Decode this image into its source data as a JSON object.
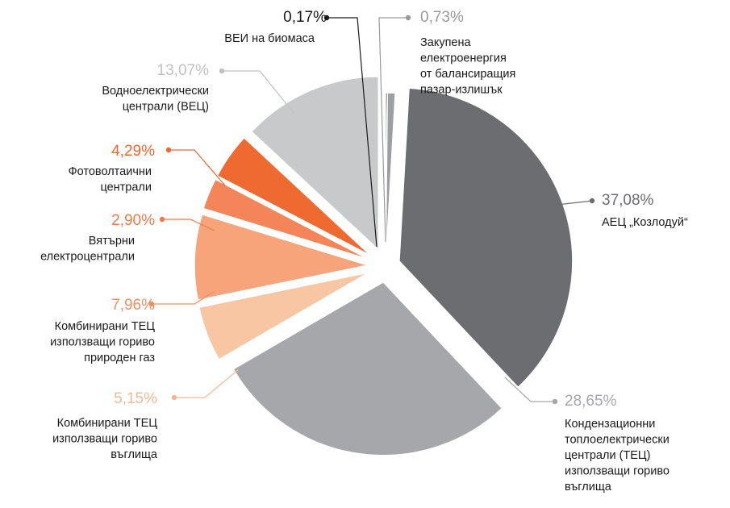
{
  "chart_data": {
    "type": "pie",
    "title": "",
    "start": "clockwise from top",
    "slices": [
      {
        "name": "ВЕИ на биомаса",
        "value": 0.17,
        "value_label": "0,17%",
        "label_lines": [
          "ВЕИ на биомаса"
        ],
        "color": "#3a3a3a",
        "text_color": "#1a1a1a"
      },
      {
        "name": "Закупена електроенергия от балансиращия пазар-излишък",
        "value": 0.73,
        "value_label": "0,73%",
        "label_lines": [
          "Закупена",
          "електроенергия",
          "от балансиращия",
          "пазар-излишък"
        ],
        "color": "#9d9ea1",
        "text_color": "#9a9a9c"
      },
      {
        "name": "АЕЦ „Козлодуй“",
        "value": 37.08,
        "value_label": "37,08%",
        "label_lines": [
          "АЕЦ „Козлодуй“"
        ],
        "color": "#6c6d70",
        "text_color": "#6c6d70"
      },
      {
        "name": "Кондензационни топлоелектрически централи (ТЕЦ) използващи гориво въглища",
        "value": 28.65,
        "value_label": "28,65%",
        "label_lines": [
          "Кондензационни",
          "топлоелектрически",
          "централи (ТЕЦ)",
          "използващи гориво",
          "въглища"
        ],
        "color": "#a6a7aa",
        "text_color": "#a6a7aa"
      },
      {
        "name": "Комбинирани ТЕЦ използващи гориво въглища",
        "value": 5.15,
        "value_label": "5,15%",
        "label_lines": [
          "Комбинирани ТЕЦ",
          "използващи гориво",
          "въглища"
        ],
        "color": "#f9c6a3",
        "text_color": "#f3b892"
      },
      {
        "name": "Комбинирани ТЕЦ използващи гориво природен газ",
        "value": 7.96,
        "value_label": "7,96%",
        "label_lines": [
          "Комбинирани ТЕЦ",
          "използващи гориво",
          "природен газ"
        ],
        "color": "#f7a47b",
        "text_color": "#f08f62"
      },
      {
        "name": "Вятърни електроцентрали",
        "value": 2.9,
        "value_label": "2,90%",
        "label_lines": [
          "Вятърни",
          "електроцентрали"
        ],
        "color": "#f38558",
        "text_color": "#ef7a4a"
      },
      {
        "name": "Фотоволтаични централи",
        "value": 4.29,
        "value_label": "4,29%",
        "label_lines": [
          "Фотоволтаични",
          "централи"
        ],
        "color": "#ee6a31",
        "text_color": "#ea6a31"
      },
      {
        "name": "Водноелектрически централи (ВЕЦ)",
        "value": 13.07,
        "value_label": "13,07%",
        "label_lines": [
          "Водноелектрически",
          "централи (ВЕЦ)"
        ],
        "color": "#c8c9cb",
        "text_color": "#c0c1c3"
      }
    ]
  }
}
